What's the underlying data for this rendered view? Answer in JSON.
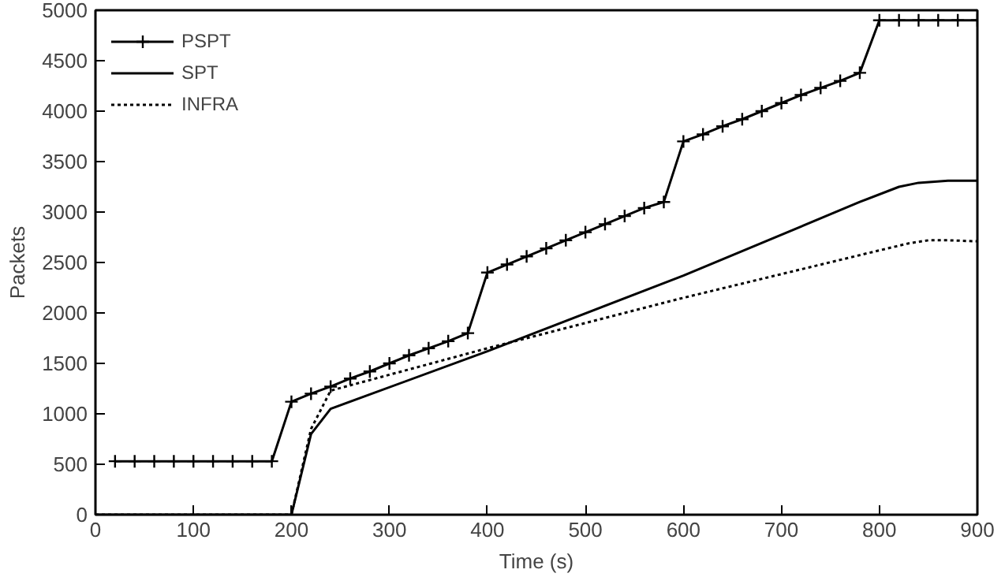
{
  "chart_data": {
    "type": "line",
    "xlabel": "Time (s)",
    "ylabel": "Packets",
    "xlim": [
      0,
      900
    ],
    "ylim": [
      0,
      5000
    ],
    "xticks": [
      0,
      100,
      200,
      300,
      400,
      500,
      600,
      700,
      800,
      900
    ],
    "yticks": [
      0,
      500,
      1000,
      1500,
      2000,
      2500,
      3000,
      3500,
      4000,
      4500,
      5000
    ],
    "grid": false,
    "legend": "top left",
    "series": [
      {
        "name": "PSPT",
        "color": "#000000",
        "marker": "cross",
        "line_style": "solid",
        "x": [
          20,
          40,
          60,
          80,
          100,
          120,
          140,
          160,
          180,
          200,
          220,
          240,
          260,
          280,
          300,
          320,
          340,
          360,
          380,
          400,
          420,
          440,
          460,
          480,
          500,
          520,
          540,
          560,
          580,
          600,
          620,
          640,
          660,
          680,
          700,
          720,
          740,
          760,
          780,
          800,
          820,
          840,
          860,
          880,
          900
        ],
        "values": [
          530,
          530,
          530,
          530,
          530,
          530,
          530,
          530,
          530,
          1120,
          1200,
          1270,
          1350,
          1420,
          1500,
          1580,
          1650,
          1720,
          1800,
          2400,
          2480,
          2560,
          2640,
          2720,
          2800,
          2880,
          2960,
          3040,
          3100,
          3700,
          3770,
          3850,
          3920,
          4000,
          4080,
          4160,
          4230,
          4300,
          4380,
          4900,
          4900,
          4900,
          4900,
          4900,
          4900
        ]
      },
      {
        "name": "SPT",
        "color": "#000000",
        "marker": "none",
        "line_style": "solid",
        "x": [
          0,
          200,
          220,
          240,
          400,
          600,
          780,
          820,
          840,
          870,
          900
        ],
        "values": [
          0,
          0,
          800,
          1050,
          1620,
          2370,
          3100,
          3250,
          3290,
          3310,
          3310
        ]
      },
      {
        "name": "INFRA",
        "color": "#000000",
        "marker": "none",
        "line_style": "dotted",
        "x": [
          0,
          200,
          220,
          240,
          400,
          600,
          800,
          830,
          850,
          870,
          900
        ],
        "values": [
          0,
          0,
          850,
          1230,
          1650,
          2150,
          2620,
          2690,
          2720,
          2720,
          2710
        ]
      }
    ]
  }
}
